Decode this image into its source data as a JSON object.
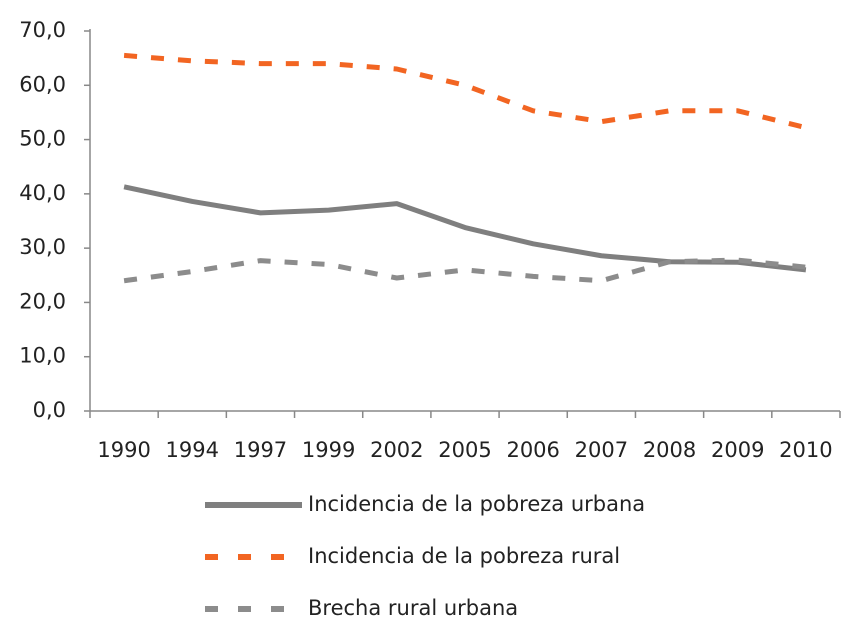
{
  "chart_data": {
    "type": "line",
    "categories": [
      "1990",
      "1994",
      "1997",
      "1999",
      "2002",
      "2005",
      "2006",
      "2007",
      "2008",
      "2009",
      "2010"
    ],
    "series": [
      {
        "name": "Incidencia de la pobreza  urbana",
        "color": "#7f7f7f",
        "dash": "solid",
        "values": [
          41.3,
          38.6,
          36.5,
          37.0,
          38.2,
          33.8,
          30.8,
          28.6,
          27.5,
          27.4,
          26.0
        ]
      },
      {
        "name": "Incidencia de la pobreza rural",
        "color": "#f26522",
        "dash": "dashed",
        "values": [
          65.5,
          64.5,
          64.0,
          64.0,
          63.0,
          60.0,
          55.3,
          53.3,
          55.3,
          55.3,
          52.2
        ]
      },
      {
        "name": "Brecha rural urbana",
        "color": "#8c8c8c",
        "dash": "dashed",
        "values": [
          24.0,
          25.7,
          27.7,
          27.0,
          24.5,
          26.0,
          24.8,
          24.0,
          27.5,
          27.8,
          26.5
        ]
      }
    ],
    "ylim": [
      0,
      70
    ],
    "yticks": [
      {
        "value": 0,
        "label": "0,0"
      },
      {
        "value": 10,
        "label": "10,0"
      },
      {
        "value": 20,
        "label": "20,0"
      },
      {
        "value": 30,
        "label": "30,0"
      },
      {
        "value": 40,
        "label": "40,0"
      },
      {
        "value": 50,
        "label": "50,0"
      },
      {
        "value": 60,
        "label": "60,0"
      },
      {
        "value": 70,
        "label": "70,0"
      }
    ],
    "grid": false
  }
}
